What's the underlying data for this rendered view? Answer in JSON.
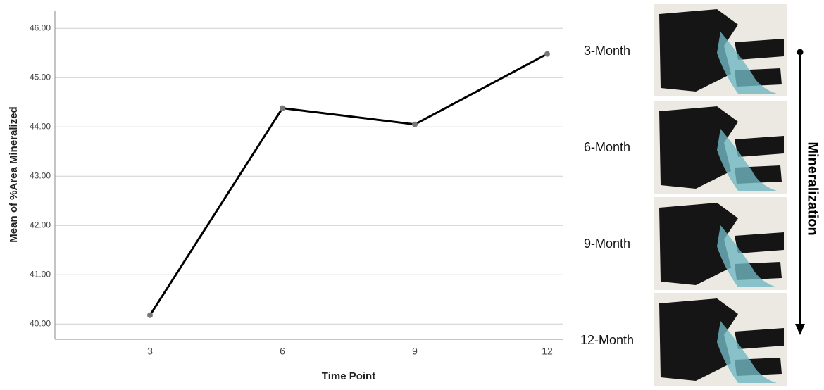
{
  "chart_data": {
    "type": "line",
    "x_label": "Time Point",
    "y_label": "Mean of %Area Mineralized",
    "categories": [
      "3",
      "6",
      "9",
      "12"
    ],
    "series": [
      {
        "color": "#000000",
        "values": [
          40.18,
          44.38,
          44.05,
          45.48
        ]
      }
    ],
    "ylim": [
      39.69,
      46.36
    ],
    "yticks": [
      {
        "value": 40,
        "label": "40.00"
      },
      {
        "value": 41,
        "label": "41.00"
      },
      {
        "value": 42,
        "label": "42.00"
      },
      {
        "value": 43,
        "label": "43.00"
      },
      {
        "value": 44,
        "label": "44.00"
      },
      {
        "value": 45,
        "label": "45.00"
      },
      {
        "value": 46,
        "label": "46.00"
      }
    ],
    "grid": true
  },
  "panels": {
    "labels": [
      "3-Month",
      "6-Month",
      "9-Month",
      "12-Month"
    ],
    "arrow_label": "Mineralization"
  }
}
